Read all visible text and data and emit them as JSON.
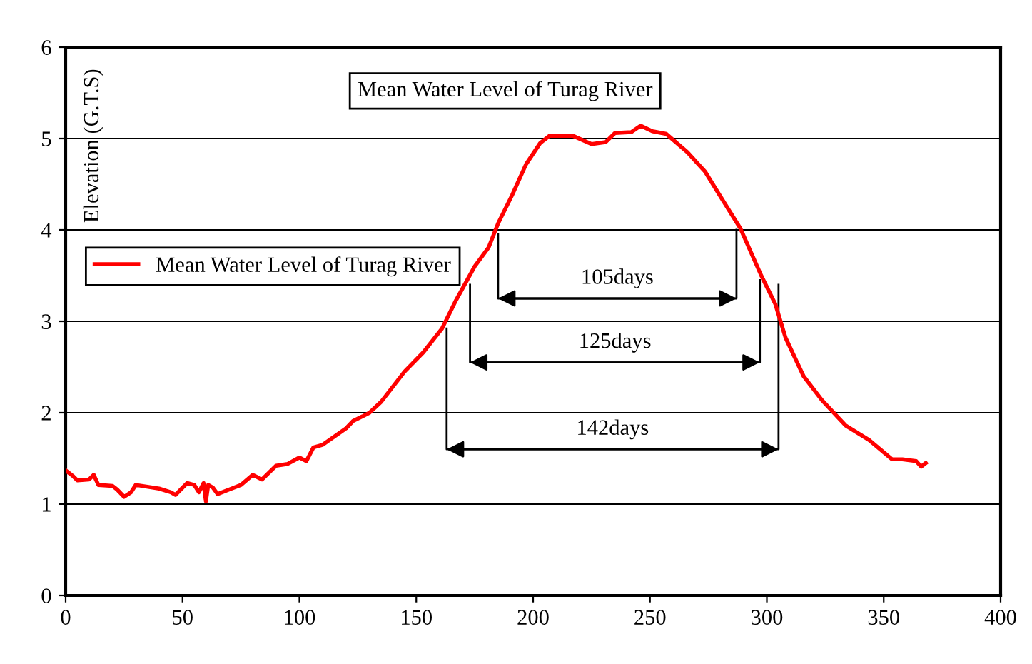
{
  "chart_data": {
    "type": "line",
    "title": "Mean Water Level of Turag River",
    "ylabel": "Elevation (G.T.S)",
    "xlim": [
      0,
      400
    ],
    "xticks": [
      0,
      50,
      100,
      150,
      200,
      250,
      300,
      350,
      400
    ],
    "ylim": [
      0,
      6
    ],
    "yticks": [
      0,
      1,
      2,
      3,
      4,
      5,
      6
    ],
    "grid": "y",
    "legend": "left",
    "marker": "none",
    "line_style": "solid",
    "series": [
      {
        "name": "Mean Water Level of Turag River",
        "color": "#ff0000",
        "x": [
          0,
          3,
          5,
          10,
          12,
          14,
          20,
          22,
          25,
          28,
          30,
          40,
          45,
          47,
          50,
          52,
          55,
          57,
          59,
          60,
          61,
          63,
          65,
          70,
          75,
          80,
          84,
          90,
          95,
          100,
          103,
          106,
          110,
          115,
          120,
          123,
          127,
          130,
          135,
          145,
          153,
          161,
          167,
          175,
          181,
          185,
          191,
          197,
          203,
          207,
          217,
          225,
          231,
          235,
          242,
          246,
          251,
          257,
          266,
          273.5,
          281,
          288.6,
          297.6,
          303.6,
          308,
          315.7,
          323.5,
          333.7,
          343.8,
          353.6,
          358,
          363.9,
          366,
          368
        ],
        "values": [
          1.37,
          1.31,
          1.26,
          1.27,
          1.32,
          1.21,
          1.2,
          1.16,
          1.08,
          1.13,
          1.21,
          1.17,
          1.13,
          1.1,
          1.18,
          1.23,
          1.21,
          1.13,
          1.23,
          1.03,
          1.21,
          1.18,
          1.11,
          1.16,
          1.21,
          1.32,
          1.27,
          1.42,
          1.44,
          1.51,
          1.47,
          1.62,
          1.65,
          1.74,
          1.83,
          1.91,
          1.96,
          2.0,
          2.12,
          2.45,
          2.66,
          2.92,
          3.23,
          3.6,
          3.81,
          4.07,
          4.38,
          4.72,
          4.95,
          5.03,
          5.03,
          4.94,
          4.96,
          5.06,
          5.07,
          5.14,
          5.08,
          5.05,
          4.85,
          4.64,
          4.33,
          4.02,
          3.5,
          3.19,
          2.82,
          2.4,
          2.14,
          1.86,
          1.7,
          1.49,
          1.49,
          1.47,
          1.41,
          1.45
        ]
      },
      {
        "type": "line",
        "color": "#000000",
        "x": [
          185,
          185,
          287,
          287
        ],
        "values": [
          3.95,
          3.25,
          3.25,
          4.0
        ]
      },
      {
        "type": "line",
        "color": "#000000",
        "x": [
          173,
          173,
          297,
          297
        ],
        "values": [
          3.4,
          2.55,
          2.55,
          3.45
        ]
      },
      {
        "type": "line",
        "color": "#000000",
        "x": [
          163,
          163,
          305,
          305
        ],
        "values": [
          2.92,
          1.6,
          1.6,
          3.4
        ]
      }
    ],
    "annotations": [
      "105days",
      "125days",
      "142days"
    ]
  }
}
